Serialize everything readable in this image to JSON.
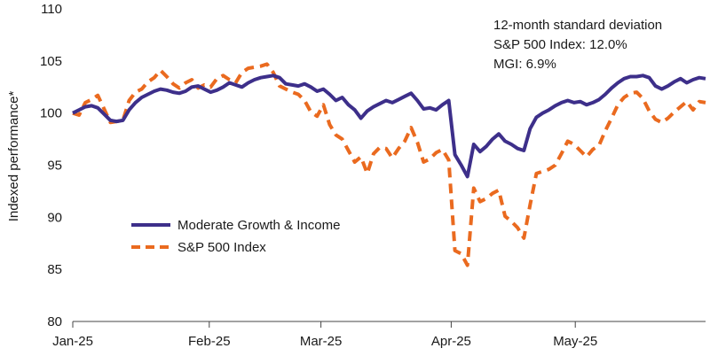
{
  "chart_data": {
    "type": "line",
    "title": "",
    "xlabel": "",
    "ylabel": "Indexed performance*",
    "ylim": [
      80,
      110
    ],
    "yticks": [
      80,
      85,
      90,
      95,
      100,
      105,
      110
    ],
    "xticks": [
      {
        "label": "Jan-25",
        "x": 0
      },
      {
        "label": "Feb-25",
        "x": 22
      },
      {
        "label": "Mar-25",
        "x": 40
      },
      {
        "label": "Apr-25",
        "x": 61
      },
      {
        "label": "May-25",
        "x": 81
      }
    ],
    "xlim": [
      0,
      102
    ],
    "grid": false,
    "annotations": [
      "12-month standard deviation",
      "S&P 500 Index: 12.0%",
      "MGI: 6.9%"
    ],
    "series": [
      {
        "name": "Moderate Growth & Income",
        "color": "#3d2f8a",
        "style": "solid",
        "values": [
          100,
          100.3,
          100.6,
          100.7,
          100.5,
          99.9,
          99.3,
          99.2,
          99.3,
          100.3,
          101.0,
          101.5,
          101.8,
          102.1,
          102.3,
          102.2,
          102.0,
          101.9,
          102.1,
          102.5,
          102.6,
          102.3,
          102.0,
          102.2,
          102.5,
          102.9,
          102.7,
          102.5,
          102.9,
          103.2,
          103.4,
          103.5,
          103.6,
          103.4,
          102.8,
          102.7,
          102.6,
          102.8,
          102.5,
          102.1,
          102.3,
          101.8,
          101.2,
          101.5,
          100.8,
          100.3,
          99.5,
          100.2,
          100.6,
          100.9,
          101.2,
          101.0,
          101.3,
          101.6,
          101.9,
          101.2,
          100.4,
          100.5,
          100.3,
          100.8,
          101.2,
          96.0,
          95.0,
          93.9,
          97.0,
          96.3,
          96.8,
          97.5,
          98.0,
          97.3,
          97.0,
          96.6,
          96.4,
          98.5,
          99.6,
          100.0,
          100.3,
          100.7,
          101.0,
          101.2,
          101.0,
          101.1,
          100.8,
          101.0,
          101.3,
          101.8,
          102.4,
          102.9,
          103.3,
          103.5,
          103.5,
          103.6,
          103.4,
          102.6,
          102.3,
          102.6,
          103.0,
          103.3,
          102.9,
          103.2,
          103.4,
          103.3
        ]
      },
      {
        "name": "S&P 500 Index",
        "color": "#ea6a1f",
        "style": "dashed",
        "values": [
          100,
          99.8,
          101.0,
          101.3,
          101.7,
          100.4,
          99.1,
          99.2,
          99.3,
          101.2,
          102.0,
          102.3,
          103.0,
          103.4,
          104.1,
          103.5,
          102.8,
          102.4,
          102.9,
          103.2,
          102.4,
          102.7,
          102.5,
          103.3,
          103.6,
          103.2,
          102.9,
          103.9,
          104.3,
          104.4,
          104.5,
          104.7,
          103.9,
          102.6,
          102.3,
          102.0,
          101.8,
          101.2,
          100.1,
          99.7,
          100.8,
          98.9,
          97.9,
          97.5,
          96.4,
          95.3,
          95.8,
          94.2,
          96.1,
          96.7,
          96.6,
          95.7,
          96.6,
          97.3,
          98.6,
          97.2,
          95.3,
          95.6,
          96.2,
          96.5,
          95.5,
          86.8,
          86.5,
          85.4,
          92.8,
          91.5,
          91.8,
          92.3,
          92.6,
          90.1,
          89.6,
          89.0,
          88.0,
          91.2,
          94.2,
          94.4,
          94.6,
          95.0,
          96.1,
          97.3,
          97.0,
          96.4,
          95.8,
          96.5,
          96.9,
          98.3,
          99.5,
          100.8,
          101.5,
          101.9,
          102.0,
          101.4,
          100.2,
          99.4,
          99.1,
          99.5,
          100.1,
          100.6,
          101.1,
          100.3,
          101.1,
          101.0
        ]
      }
    ]
  }
}
